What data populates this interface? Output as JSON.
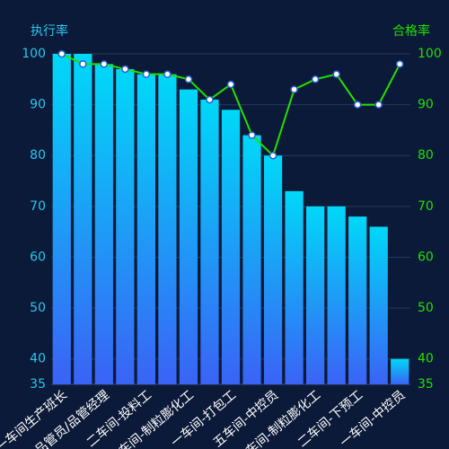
{
  "chart_data": {
    "type": "bar-line",
    "y_label": "执行率",
    "y2_label": "合格率",
    "categories": [
      "一车间生产班长",
      null,
      "品管员/品管经理",
      null,
      "二车间-投料工",
      null,
      "一车间-制粒膨化工",
      null,
      "一车间-打包工",
      null,
      "五车间-中控员",
      null,
      "二车间-制粒膨化工",
      null,
      "二车间-下预工",
      null,
      "一车间-中控员"
    ],
    "series": [
      {
        "type": "bar",
        "color": [
          "#00d8f8",
          "#3a63f5"
        ],
        "values": [
          100,
          100,
          98,
          97,
          96,
          96,
          93,
          91,
          89,
          84,
          80,
          73,
          70,
          70,
          68,
          66,
          40
        ]
      },
      {
        "type": "line",
        "axis": "y2",
        "color": "#22e000",
        "values": [
          100,
          98,
          98,
          97,
          96,
          96,
          95,
          91,
          94,
          84,
          80,
          93,
          95,
          96,
          90,
          90,
          98
        ]
      }
    ],
    "ylim": [
      35,
      100
    ],
    "yticks": [
      35,
      40,
      50,
      60,
      70,
      80,
      90,
      100
    ],
    "y2lim": [
      35,
      100
    ],
    "y2ticks": [
      35,
      40,
      50,
      60,
      70,
      80,
      90,
      100
    ],
    "grid": true
  }
}
